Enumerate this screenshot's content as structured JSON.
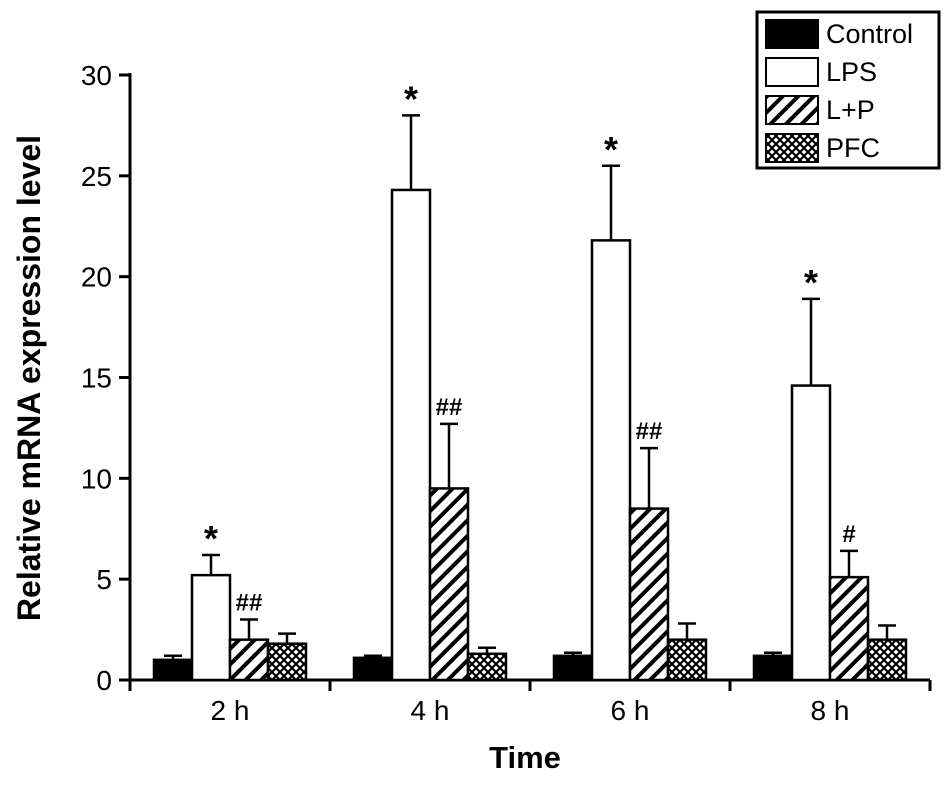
{
  "figure": {
    "background": "#ffffff",
    "ink_color": "#000000"
  },
  "chart_data": {
    "type": "bar",
    "title": "",
    "xlabel": "Time",
    "ylabel": "Relative mRNA expression level",
    "ylim": [
      0,
      30
    ],
    "yticks": [
      0,
      5,
      10,
      15,
      20,
      25,
      30
    ],
    "categories": [
      "2 h",
      "4 h",
      "6 h",
      "8 h"
    ],
    "grid": false,
    "legend_position": "top-right",
    "series": [
      {
        "name": "Control",
        "pattern": "solid-black",
        "values": [
          1.0,
          1.1,
          1.2,
          1.2
        ],
        "errors": [
          0.2,
          0.1,
          0.15,
          0.15
        ],
        "annotations": [
          "",
          "",
          "",
          ""
        ]
      },
      {
        "name": "LPS",
        "pattern": "white",
        "values": [
          5.2,
          24.3,
          21.8,
          14.6
        ],
        "errors": [
          1.0,
          3.7,
          3.7,
          4.3
        ],
        "annotations": [
          "*",
          "*",
          "*",
          "*"
        ]
      },
      {
        "name": "L+P",
        "pattern": "diagonal-hatch",
        "values": [
          2.0,
          9.5,
          8.5,
          5.1
        ],
        "errors": [
          1.0,
          3.2,
          3.0,
          1.3
        ],
        "annotations": [
          "##",
          "##",
          "##",
          "#"
        ]
      },
      {
        "name": "PFC",
        "pattern": "crosshatch",
        "values": [
          1.8,
          1.3,
          2.0,
          2.0
        ],
        "errors": [
          0.5,
          0.3,
          0.8,
          0.7
        ],
        "annotations": [
          "",
          "",
          "",
          ""
        ]
      }
    ]
  }
}
